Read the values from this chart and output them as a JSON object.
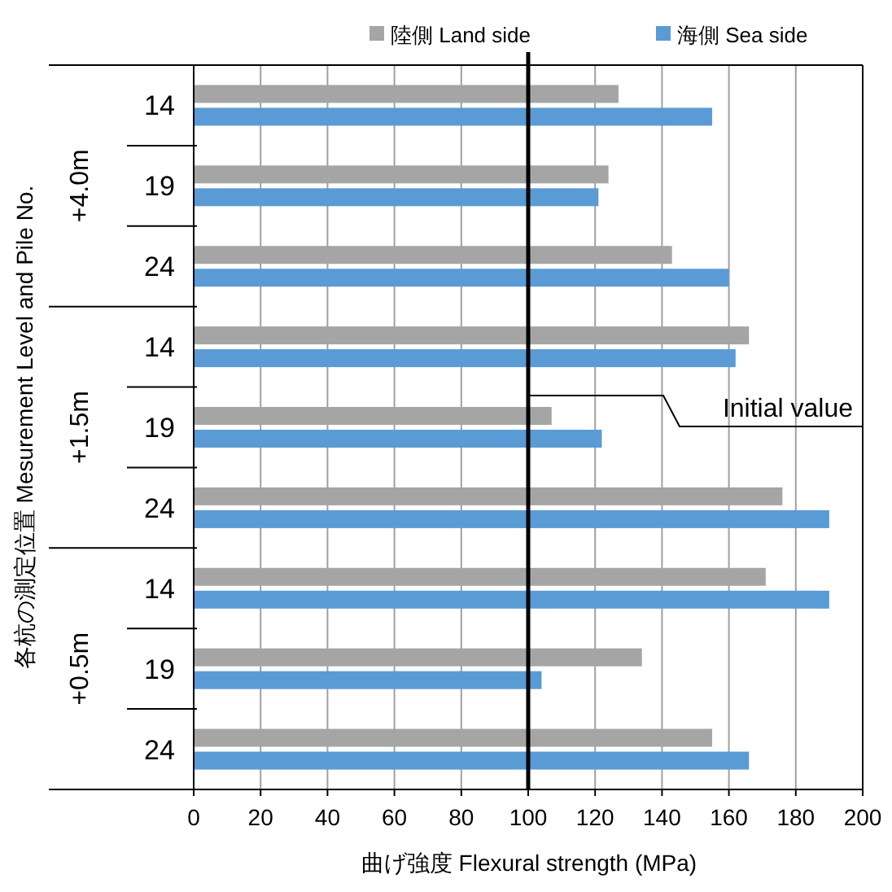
{
  "chart_data": {
    "type": "bar",
    "orientation": "horizontal",
    "xlabel": "曲げ強度 Flexural strength (MPa)",
    "ylabel": "各杭の測定位置 Mesurement Level and Pile No.",
    "categories": [
      "14",
      "19",
      "24",
      "14",
      "19",
      "24",
      "14",
      "19",
      "24"
    ],
    "series": [
      {
        "name": "陸側 Land side",
        "color": "#a5a5a5",
        "values": [
          127,
          124,
          143,
          166,
          107,
          176,
          171,
          134,
          155
        ]
      },
      {
        "name": "海側 Sea side",
        "color": "#5b9bd5",
        "values": [
          155,
          121,
          160,
          162,
          122,
          190,
          190,
          104,
          166
        ]
      }
    ],
    "annotations": [
      "+4.0m",
      "+1.5m",
      "+0.5m"
    ],
    "xlim": [
      0,
      200
    ],
    "xticks": [
      0,
      20,
      40,
      60,
      80,
      100,
      120,
      140,
      160,
      180,
      200
    ],
    "ref_lines": [
      {
        "axis": "x",
        "value": 100,
        "label": "Initial value",
        "color": "#000000"
      }
    ],
    "grid": "x",
    "legend": "top"
  }
}
